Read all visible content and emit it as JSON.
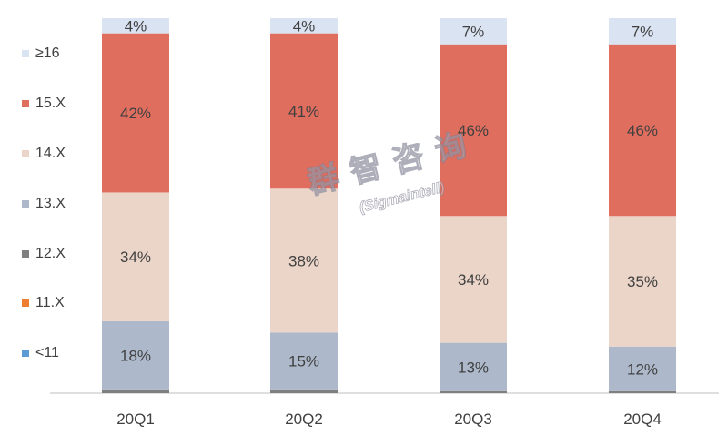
{
  "chart_data": {
    "type": "bar",
    "stacked": true,
    "percent": true,
    "categories": [
      "20Q1",
      "20Q2",
      "20Q3",
      "20Q4"
    ],
    "series": [
      {
        "name": "<11",
        "color": "#5B9BD5",
        "values": [
          0,
          0,
          0,
          0
        ]
      },
      {
        "name": "11.X",
        "color": "#ED7D31",
        "values": [
          0,
          0,
          0,
          0
        ]
      },
      {
        "name": "12.X",
        "color": "#7F7F7F",
        "values": [
          1,
          1,
          0.5,
          0.5
        ]
      },
      {
        "name": "13.X",
        "color": "#ADB9CA",
        "values": [
          18,
          15,
          13,
          12
        ],
        "labels": [
          "18%",
          "15%",
          "13%",
          "12%"
        ]
      },
      {
        "name": "14.X",
        "color": "#EBD5C8",
        "values": [
          34,
          38,
          34,
          35
        ],
        "labels": [
          "34%",
          "38%",
          "34%",
          "35%"
        ]
      },
      {
        "name": "15.X",
        "color": "#E06E5E",
        "values": [
          42,
          41,
          46,
          46
        ],
        "labels": [
          "42%",
          "41%",
          "46%",
          "46%"
        ]
      },
      {
        "name": "≥16",
        "color": "#D9E3F2",
        "values": [
          4,
          4,
          7,
          7
        ],
        "labels": [
          "4%",
          "4%",
          "7%",
          "7%"
        ]
      }
    ],
    "legend_position": "left",
    "grid": false
  },
  "legend": [
    {
      "label": "≥16",
      "color": "#D9E3F2"
    },
    {
      "label": "15.X",
      "color": "#E06E5E"
    },
    {
      "label": "14.X",
      "color": "#EBD5C8"
    },
    {
      "label": "13.X",
      "color": "#ADB9CA"
    },
    {
      "label": "12.X",
      "color": "#7F7F7F"
    },
    {
      "label": "11.X",
      "color": "#ED7D31"
    },
    {
      "label": "<11",
      "color": "#5B9BD5"
    }
  ],
  "watermark": {
    "chinese": "群智咨询",
    "english": "(Sigmaintell)"
  }
}
